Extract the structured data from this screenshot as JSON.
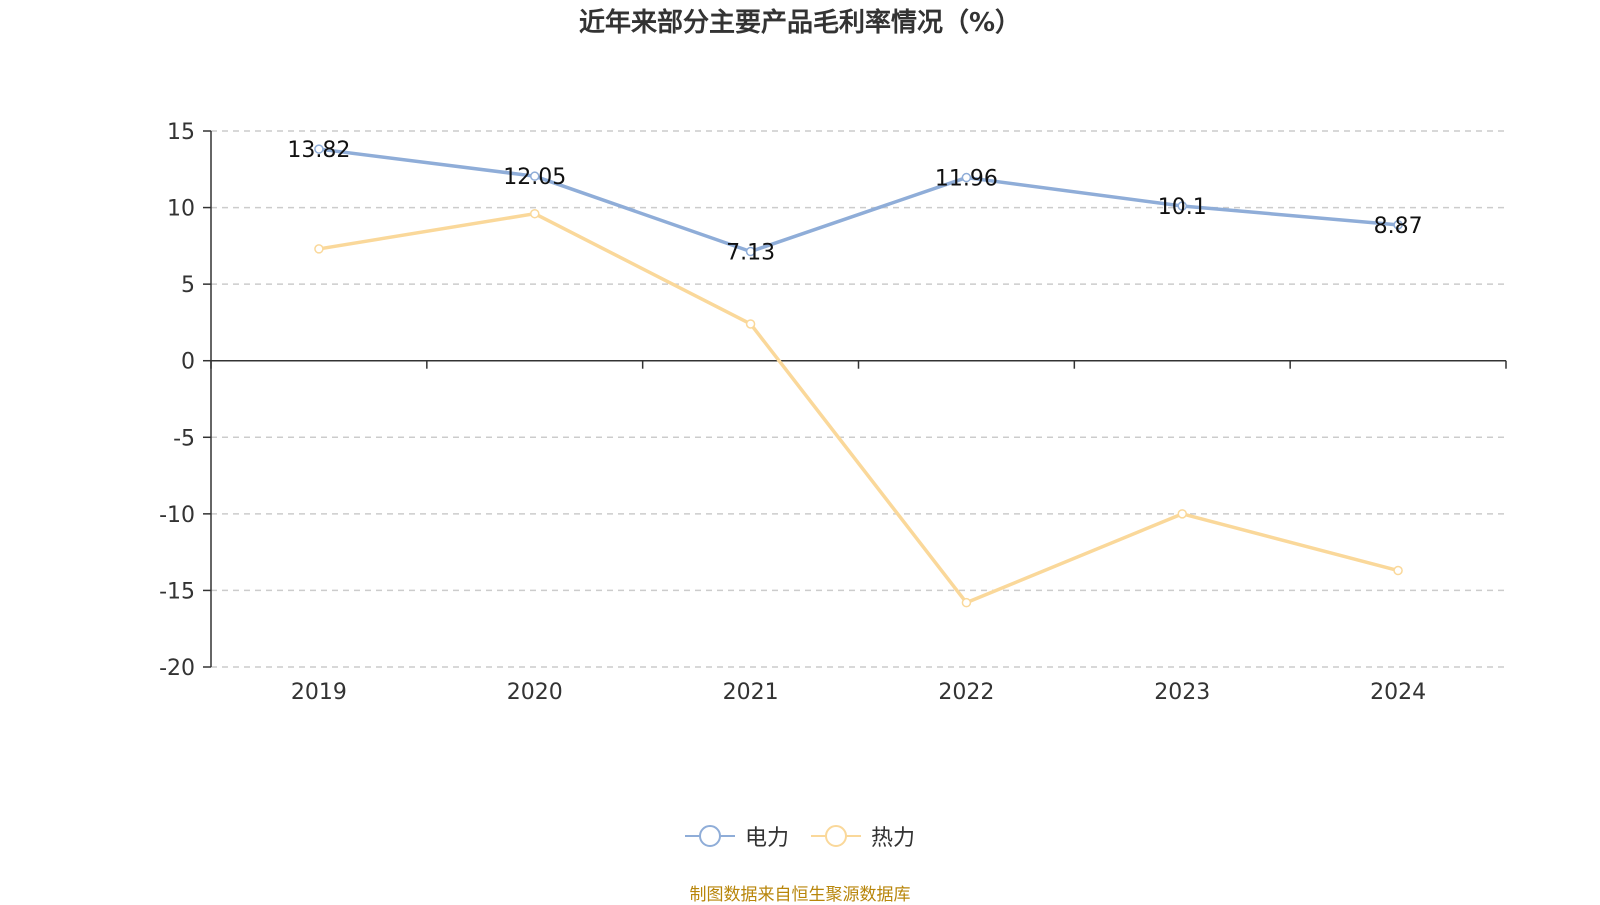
{
  "chart_data": {
    "type": "line",
    "title": "近年来部分主要产品毛利率情况（%）",
    "categories": [
      "2019",
      "2020",
      "2021",
      "2022",
      "2023",
      "2024"
    ],
    "series": [
      {
        "name": "电力",
        "color": "#8fadd8",
        "values": [
          13.82,
          12.05,
          7.13,
          11.96,
          10.1,
          8.87
        ],
        "data_labels": [
          "13.82",
          "12.05",
          "7.13",
          "11.96",
          "10.1",
          "8.87"
        ]
      },
      {
        "name": "热力",
        "color": "#fad89a",
        "values": [
          7.3,
          9.6,
          2.4,
          -15.8,
          -10.0,
          -13.7
        ]
      }
    ],
    "ylim": [
      -20,
      15
    ],
    "yticks": [
      "15",
      "10",
      "5",
      "0",
      "-5",
      "-10",
      "-15",
      "-20"
    ],
    "grid": true,
    "legend_position": "bottom-center"
  },
  "source_note": "制图数据来自恒生聚源数据库"
}
